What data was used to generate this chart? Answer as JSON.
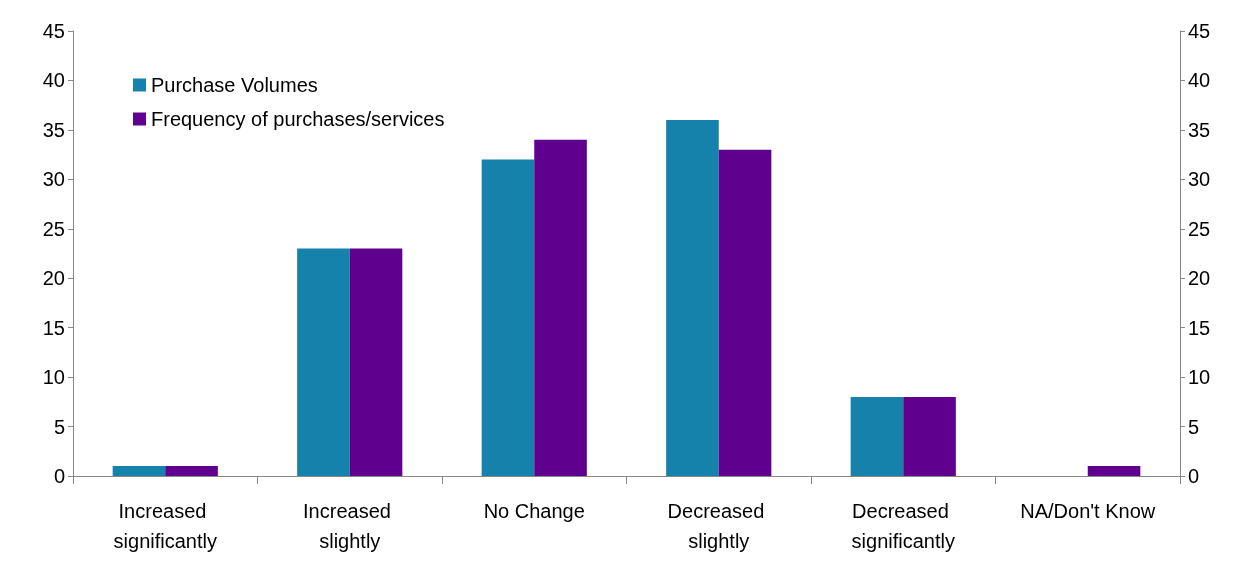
{
  "chart_data": {
    "type": "bar",
    "categories": [
      "Increased significantly",
      "Increased slightly",
      "No Change",
      "Decreased slightly",
      "Decreased significantly",
      "NA/Don't Know"
    ],
    "series": [
      {
        "name": "Purchase Volumes",
        "color": "#1482aa",
        "values": [
          1,
          23,
          32,
          36,
          8,
          0
        ]
      },
      {
        "name": "Frequency of purchases/services",
        "color": "#5f008f",
        "values": [
          1,
          23,
          34,
          33,
          8,
          1
        ]
      }
    ],
    "ylim": [
      0,
      45
    ],
    "yticks": [
      0,
      5,
      10,
      15,
      20,
      25,
      30,
      35,
      40,
      45
    ],
    "y2lim": [
      0,
      45
    ],
    "y2ticks": [
      0,
      5,
      10,
      15,
      20,
      25,
      30,
      35,
      40,
      45
    ],
    "grid": false,
    "legend": "top left"
  }
}
